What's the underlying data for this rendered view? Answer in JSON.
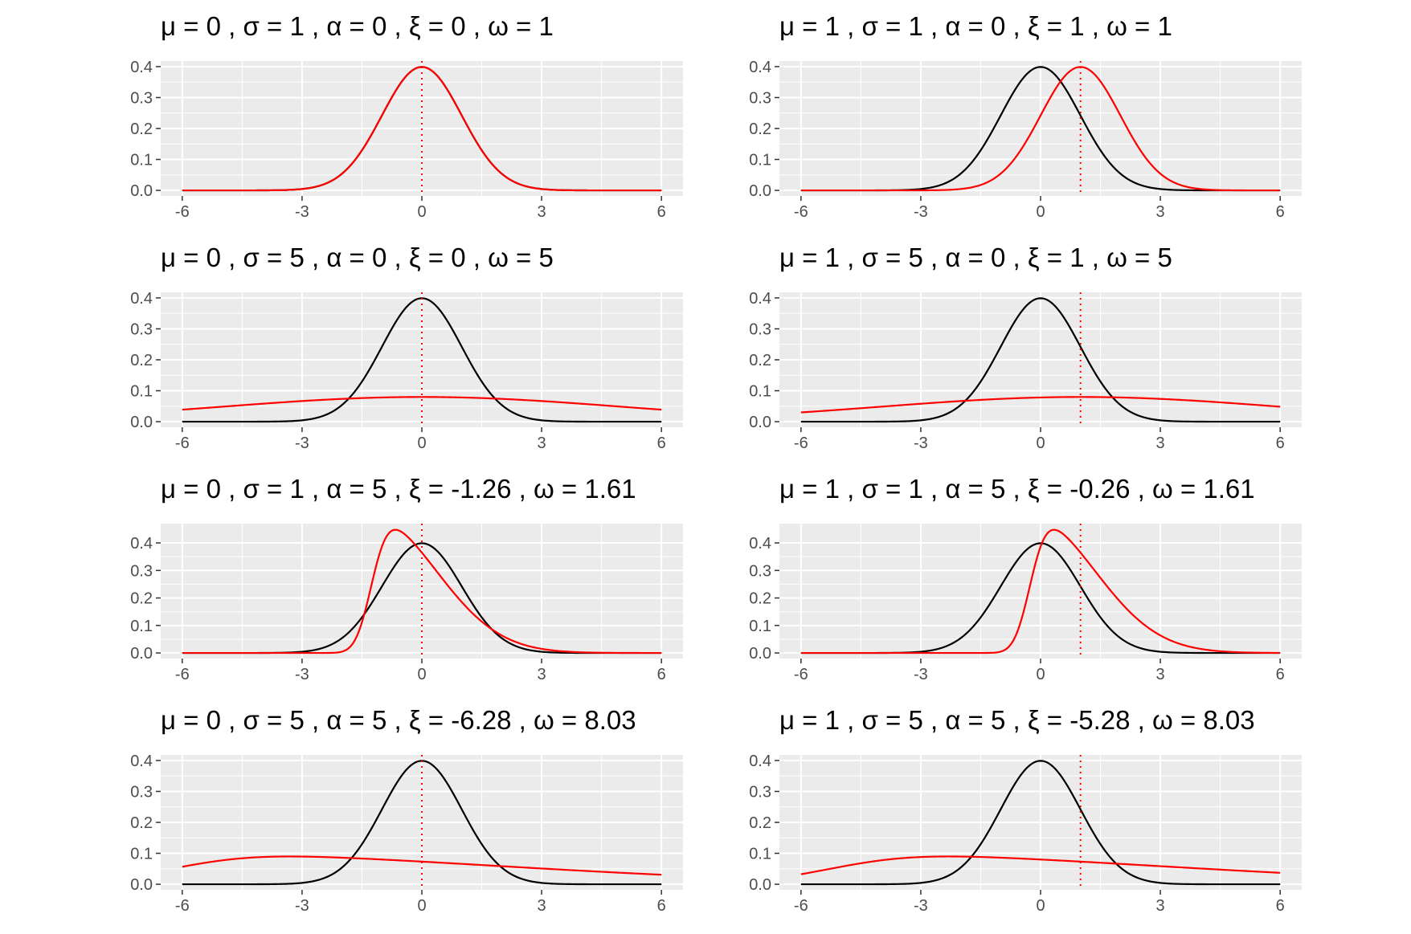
{
  "colors": {
    "panel_bg": "#ebebeb",
    "grid": "#ffffff",
    "reference_curve": "#000000",
    "model_curve": "#ff0000",
    "mean_line": "#ff0000",
    "tick_text": "#4d4d4d",
    "tick_mark": "#333333"
  },
  "chart_data": [
    {
      "type": "line",
      "title": "μ = 0 ,  σ = 1 ,  α = 0 ,  ξ = 0 ,  ω = 1",
      "params": {
        "mu": 0,
        "sigma": 1,
        "alpha": 0,
        "xi": 0,
        "omega": 1
      },
      "series": [
        {
          "kind": "reference_standard_normal",
          "color": "#000000"
        },
        {
          "kind": "skew_normal_xi_omega_alpha",
          "color": "#ff0000"
        }
      ],
      "mean_line_x": 0,
      "xlim": [
        -6,
        6
      ],
      "ylim": [
        0,
        0.4
      ],
      "xticks": [
        -6,
        -3,
        0,
        3,
        6
      ],
      "xtick_labels": [
        "-6",
        "-3",
        "0",
        "3",
        "6"
      ],
      "yticks": [
        0,
        0.1,
        0.2,
        0.3,
        0.4
      ],
      "ytick_labels": [
        "0.0",
        "0.1",
        "0.2",
        "0.3",
        "0.4"
      ],
      "grid": true
    },
    {
      "type": "line",
      "title": "μ = 1 ,  σ = 1 ,  α = 0 ,  ξ = 1 ,  ω = 1",
      "params": {
        "mu": 1,
        "sigma": 1,
        "alpha": 0,
        "xi": 1,
        "omega": 1
      },
      "series": [
        {
          "kind": "reference_standard_normal",
          "color": "#000000"
        },
        {
          "kind": "skew_normal_xi_omega_alpha",
          "color": "#ff0000"
        }
      ],
      "mean_line_x": 1,
      "xlim": [
        -6,
        6
      ],
      "ylim": [
        0,
        0.4
      ],
      "xticks": [
        -6,
        -3,
        0,
        3,
        6
      ],
      "xtick_labels": [
        "-6",
        "-3",
        "0",
        "3",
        "6"
      ],
      "yticks": [
        0,
        0.1,
        0.2,
        0.3,
        0.4
      ],
      "ytick_labels": [
        "0.0",
        "0.1",
        "0.2",
        "0.3",
        "0.4"
      ],
      "grid": true
    },
    {
      "type": "line",
      "title": "μ = 0 ,  σ = 5 ,  α = 0 ,  ξ = 0 ,  ω = 5",
      "params": {
        "mu": 0,
        "sigma": 5,
        "alpha": 0,
        "xi": 0,
        "omega": 5
      },
      "series": [
        {
          "kind": "reference_standard_normal",
          "color": "#000000"
        },
        {
          "kind": "skew_normal_xi_omega_alpha",
          "color": "#ff0000"
        }
      ],
      "mean_line_x": 0,
      "xlim": [
        -6,
        6
      ],
      "ylim": [
        0,
        0.4
      ],
      "xticks": [
        -6,
        -3,
        0,
        3,
        6
      ],
      "xtick_labels": [
        "-6",
        "-3",
        "0",
        "3",
        "6"
      ],
      "yticks": [
        0,
        0.1,
        0.2,
        0.3,
        0.4
      ],
      "ytick_labels": [
        "0.0",
        "0.1",
        "0.2",
        "0.3",
        "0.4"
      ],
      "grid": true
    },
    {
      "type": "line",
      "title": "μ = 1 ,  σ = 5 ,  α = 0 ,  ξ = 1 ,  ω = 5",
      "params": {
        "mu": 1,
        "sigma": 5,
        "alpha": 0,
        "xi": 1,
        "omega": 5
      },
      "series": [
        {
          "kind": "reference_standard_normal",
          "color": "#000000"
        },
        {
          "kind": "skew_normal_xi_omega_alpha",
          "color": "#ff0000"
        }
      ],
      "mean_line_x": 1,
      "xlim": [
        -6,
        6
      ],
      "ylim": [
        0,
        0.4
      ],
      "xticks": [
        -6,
        -3,
        0,
        3,
        6
      ],
      "xtick_labels": [
        "-6",
        "-3",
        "0",
        "3",
        "6"
      ],
      "yticks": [
        0,
        0.1,
        0.2,
        0.3,
        0.4
      ],
      "ytick_labels": [
        "0.0",
        "0.1",
        "0.2",
        "0.3",
        "0.4"
      ],
      "grid": true
    },
    {
      "type": "line",
      "title": "μ = 0 ,  σ = 1 ,  α = 5 ,  ξ = -1.26 ,  ω = 1.61",
      "params": {
        "mu": 0,
        "sigma": 1,
        "alpha": 5,
        "xi": -1.26,
        "omega": 1.61
      },
      "series": [
        {
          "kind": "reference_standard_normal",
          "color": "#000000"
        },
        {
          "kind": "skew_normal_xi_omega_alpha",
          "color": "#ff0000"
        }
      ],
      "mean_line_x": 0,
      "xlim": [
        -6,
        6
      ],
      "ylim": [
        0,
        0.45
      ],
      "xticks": [
        -6,
        -3,
        0,
        3,
        6
      ],
      "xtick_labels": [
        "-6",
        "-3",
        "0",
        "3",
        "6"
      ],
      "yticks": [
        0,
        0.1,
        0.2,
        0.3,
        0.4
      ],
      "ytick_labels": [
        "0.0",
        "0.1",
        "0.2",
        "0.3",
        "0.4"
      ],
      "grid": true
    },
    {
      "type": "line",
      "title": "μ = 1 ,  σ = 1 ,  α = 5 ,  ξ = -0.26 ,  ω = 1.61",
      "params": {
        "mu": 1,
        "sigma": 1,
        "alpha": 5,
        "xi": -0.26,
        "omega": 1.61
      },
      "series": [
        {
          "kind": "reference_standard_normal",
          "color": "#000000"
        },
        {
          "kind": "skew_normal_xi_omega_alpha",
          "color": "#ff0000"
        }
      ],
      "mean_line_x": 1,
      "xlim": [
        -6,
        6
      ],
      "ylim": [
        0,
        0.45
      ],
      "xticks": [
        -6,
        -3,
        0,
        3,
        6
      ],
      "xtick_labels": [
        "-6",
        "-3",
        "0",
        "3",
        "6"
      ],
      "yticks": [
        0,
        0.1,
        0.2,
        0.3,
        0.4
      ],
      "ytick_labels": [
        "0.0",
        "0.1",
        "0.2",
        "0.3",
        "0.4"
      ],
      "grid": true
    },
    {
      "type": "line",
      "title": "μ = 0 ,  σ = 5 ,  α = 5 ,  ξ = -6.28 ,  ω = 8.03",
      "params": {
        "mu": 0,
        "sigma": 5,
        "alpha": 5,
        "xi": -6.28,
        "omega": 8.03
      },
      "series": [
        {
          "kind": "reference_standard_normal",
          "color": "#000000"
        },
        {
          "kind": "skew_normal_xi_omega_alpha",
          "color": "#ff0000"
        }
      ],
      "mean_line_x": 0,
      "xlim": [
        -6,
        6
      ],
      "ylim": [
        0,
        0.4
      ],
      "xticks": [
        -6,
        -3,
        0,
        3,
        6
      ],
      "xtick_labels": [
        "-6",
        "-3",
        "0",
        "3",
        "6"
      ],
      "yticks": [
        0,
        0.1,
        0.2,
        0.3,
        0.4
      ],
      "ytick_labels": [
        "0.0",
        "0.1",
        "0.2",
        "0.3",
        "0.4"
      ],
      "grid": true
    },
    {
      "type": "line",
      "title": "μ = 1 ,  σ = 5 ,  α = 5 ,  ξ = -5.28 ,  ω = 8.03",
      "params": {
        "mu": 1,
        "sigma": 5,
        "alpha": 5,
        "xi": -5.28,
        "omega": 8.03
      },
      "series": [
        {
          "kind": "reference_standard_normal",
          "color": "#000000"
        },
        {
          "kind": "skew_normal_xi_omega_alpha",
          "color": "#ff0000"
        }
      ],
      "mean_line_x": 1,
      "xlim": [
        -6,
        6
      ],
      "ylim": [
        0,
        0.4
      ],
      "xticks": [
        -6,
        -3,
        0,
        3,
        6
      ],
      "xtick_labels": [
        "-6",
        "-3",
        "0",
        "3",
        "6"
      ],
      "yticks": [
        0,
        0.1,
        0.2,
        0.3,
        0.4
      ],
      "ytick_labels": [
        "0.0",
        "0.1",
        "0.2",
        "0.3",
        "0.4"
      ],
      "grid": true
    }
  ]
}
